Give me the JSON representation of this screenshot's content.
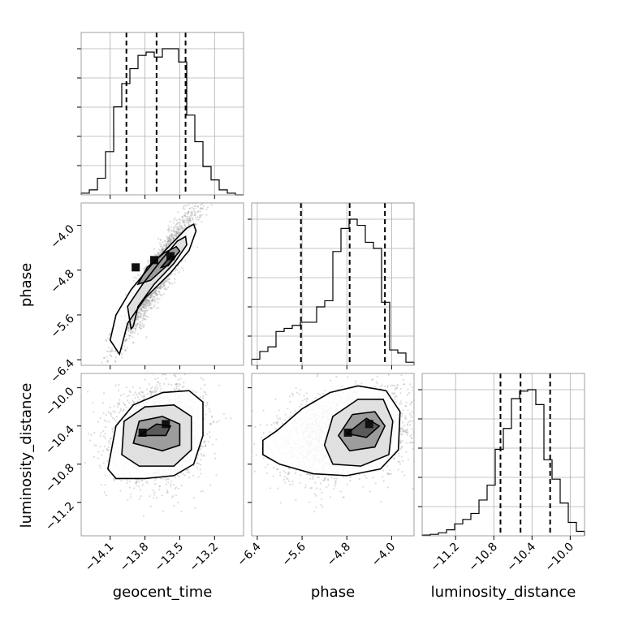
{
  "chart_data": {
    "type": "corner",
    "parameters": [
      "geocent_time",
      "phase",
      "luminosity_distance"
    ],
    "ranges": {
      "geocent_time": [
        -14.35,
        -12.95
      ],
      "phase": [
        -6.5,
        -3.6
      ],
      "luminosity_distance": [
        -11.55,
        -9.85
      ]
    },
    "ticks": {
      "geocent_time": [
        -14.1,
        -13.8,
        -13.5,
        -13.2
      ],
      "phase": [
        -6.4,
        -5.6,
        -4.8,
        -4.0
      ],
      "luminosity_distance": [
        -11.2,
        -10.8,
        -10.4,
        -10.0
      ]
    },
    "tick_labels": {
      "geocent_time": [
        "−14.1",
        "−13.8",
        "−13.5",
        "−13.2"
      ],
      "phase": [
        "−6.4",
        "−5.6",
        "−4.8",
        "−4.0"
      ],
      "luminosity_distance": [
        "−11.2",
        "−10.8",
        "−10.4",
        "−10.0"
      ]
    },
    "quantiles": {
      "geocent_time": [
        -13.96,
        -13.7,
        -13.45
      ],
      "phase": [
        -5.62,
        -4.75,
        -4.12
      ],
      "luminosity_distance": [
        -10.73,
        -10.52,
        -10.21
      ]
    },
    "histograms": {
      "geocent_time": {
        "edges": [
          -14.35,
          -14.28,
          -14.21,
          -14.14,
          -14.07,
          -14.0,
          -13.93,
          -13.86,
          -13.79,
          -13.72,
          -13.65,
          -13.58,
          -13.51,
          -13.44,
          -13.37,
          -13.3,
          -13.23,
          -13.16,
          -13.09,
          -13.02,
          -12.95
        ],
        "counts": [
          0.01,
          0.03,
          0.1,
          0.26,
          0.53,
          0.67,
          0.76,
          0.84,
          0.86,
          0.83,
          0.88,
          0.88,
          0.8,
          0.48,
          0.32,
          0.17,
          0.09,
          0.03,
          0.01,
          0.0
        ]
      },
      "phase": {
        "edges": [
          -6.5,
          -6.355,
          -6.21,
          -6.065,
          -5.92,
          -5.775,
          -5.63,
          -5.485,
          -5.34,
          -5.195,
          -5.05,
          -4.905,
          -4.76,
          -4.615,
          -4.47,
          -4.325,
          -4.18,
          -4.035,
          -3.89,
          -3.745,
          -3.6
        ],
        "counts": [
          0.04,
          0.09,
          0.12,
          0.22,
          0.24,
          0.26,
          0.28,
          0.28,
          0.38,
          0.42,
          0.74,
          0.89,
          0.95,
          0.91,
          0.8,
          0.76,
          0.41,
          0.1,
          0.08,
          0.02
        ]
      },
      "luminosity_distance": {
        "edges": [
          -11.55,
          -11.465,
          -11.38,
          -11.295,
          -11.21,
          -11.125,
          -11.04,
          -10.955,
          -10.87,
          -10.785,
          -10.7,
          -10.615,
          -10.53,
          -10.445,
          -10.36,
          -10.275,
          -10.19,
          -10.105,
          -10.02,
          -9.935,
          -9.85
        ],
        "counts": [
          0.005,
          0.01,
          0.02,
          0.04,
          0.08,
          0.11,
          0.15,
          0.24,
          0.34,
          0.58,
          0.72,
          0.92,
          0.97,
          0.98,
          0.88,
          0.51,
          0.38,
          0.22,
          0.09,
          0.03
        ]
      }
    },
    "pairs": [
      {
        "x": "geocent_time",
        "y": "phase",
        "rho": 0.93,
        "mean": [
          -13.7,
          -4.9
        ],
        "sd": [
          0.17,
          0.58
        ],
        "density_peaks": [
          [
            -13.58,
            -4.55
          ],
          [
            -13.88,
            -4.75
          ],
          [
            -13.72,
            -4.62
          ]
        ],
        "contours": [
          [
            [
              -14.02,
              -6.3
            ],
            [
              -14.1,
              -6.05
            ],
            [
              -14.05,
              -5.6
            ],
            [
              -13.92,
              -5.15
            ],
            [
              -13.75,
              -4.72
            ],
            [
              -13.58,
              -4.35
            ],
            [
              -13.44,
              -4.05
            ],
            [
              -13.38,
              -3.98
            ],
            [
              -13.36,
              -4.1
            ],
            [
              -13.42,
              -4.45
            ],
            [
              -13.58,
              -4.85
            ],
            [
              -13.8,
              -5.3
            ],
            [
              -13.95,
              -5.75
            ],
            [
              -14.0,
              -6.15
            ]
          ],
          [
            [
              -13.92,
              -5.85
            ],
            [
              -13.95,
              -5.45
            ],
            [
              -13.82,
              -5.05
            ],
            [
              -13.66,
              -4.62
            ],
            [
              -13.52,
              -4.28
            ],
            [
              -13.45,
              -4.2
            ],
            [
              -13.44,
              -4.35
            ],
            [
              -13.55,
              -4.68
            ],
            [
              -13.72,
              -5.05
            ],
            [
              -13.86,
              -5.45
            ],
            [
              -13.9,
              -5.8
            ]
          ],
          [
            [
              -13.86,
              -5.05
            ],
            [
              -13.78,
              -4.75
            ],
            [
              -13.64,
              -4.5
            ],
            [
              -13.53,
              -4.38
            ],
            [
              -13.5,
              -4.46
            ],
            [
              -13.6,
              -4.7
            ],
            [
              -13.75,
              -4.98
            ]
          ],
          [
            [
              -13.66,
              -4.75
            ],
            [
              -13.58,
              -4.55
            ],
            [
              -13.54,
              -4.57
            ],
            [
              -13.6,
              -4.72
            ]
          ]
        ]
      },
      {
        "x": "geocent_time",
        "y": "luminosity_distance",
        "rho": 0.1,
        "mean": [
          -13.68,
          -10.48
        ],
        "sd": [
          0.19,
          0.24
        ],
        "density_peaks": [
          [
            -13.82,
            -10.47
          ],
          [
            -13.62,
            -10.38
          ]
        ],
        "contours": [
          [
            [
              -14.12,
              -10.85
            ],
            [
              -14.05,
              -10.4
            ],
            [
              -13.9,
              -10.18
            ],
            [
              -13.65,
              -10.05
            ],
            [
              -13.42,
              -10.03
            ],
            [
              -13.3,
              -10.15
            ],
            [
              -13.3,
              -10.5
            ],
            [
              -13.38,
              -10.8
            ],
            [
              -13.55,
              -10.92
            ],
            [
              -13.8,
              -10.95
            ],
            [
              -14.05,
              -10.95
            ]
          ],
          [
            [
              -14.0,
              -10.7
            ],
            [
              -13.98,
              -10.35
            ],
            [
              -13.8,
              -10.2
            ],
            [
              -13.55,
              -10.18
            ],
            [
              -13.4,
              -10.3
            ],
            [
              -13.4,
              -10.65
            ],
            [
              -13.55,
              -10.82
            ],
            [
              -13.85,
              -10.82
            ]
          ],
          [
            [
              -13.9,
              -10.58
            ],
            [
              -13.85,
              -10.35
            ],
            [
              -13.65,
              -10.3
            ],
            [
              -13.5,
              -10.38
            ],
            [
              -13.5,
              -10.6
            ],
            [
              -13.65,
              -10.66
            ]
          ],
          [
            [
              -13.85,
              -10.5
            ],
            [
              -13.7,
              -10.38
            ],
            [
              -13.58,
              -10.4
            ],
            [
              -13.62,
              -10.5
            ]
          ]
        ]
      },
      {
        "x": "phase",
        "y": "luminosity_distance",
        "rho": 0.3,
        "mean": [
          -4.8,
          -10.48
        ],
        "sd": [
          0.62,
          0.24
        ],
        "density_peaks": [
          [
            -4.78,
            -10.47
          ],
          [
            -4.4,
            -10.38
          ]
        ],
        "contours": [
          [
            [
              -6.3,
              -10.55
            ],
            [
              -6.05,
              -10.45
            ],
            [
              -5.6,
              -10.22
            ],
            [
              -5.1,
              -10.05
            ],
            [
              -4.6,
              -9.98
            ],
            [
              -4.1,
              -10.03
            ],
            [
              -3.85,
              -10.25
            ],
            [
              -3.88,
              -10.65
            ],
            [
              -4.2,
              -10.85
            ],
            [
              -4.8,
              -10.92
            ],
            [
              -5.4,
              -10.9
            ],
            [
              -6.0,
              -10.8
            ],
            [
              -6.3,
              -10.7
            ]
          ],
          [
            [
              -5.2,
              -10.6
            ],
            [
              -5.05,
              -10.3
            ],
            [
              -4.6,
              -10.12
            ],
            [
              -4.15,
              -10.12
            ],
            [
              -3.98,
              -10.35
            ],
            [
              -4.05,
              -10.7
            ],
            [
              -4.55,
              -10.82
            ],
            [
              -5.05,
              -10.8
            ]
          ],
          [
            [
              -4.95,
              -10.5
            ],
            [
              -4.7,
              -10.28
            ],
            [
              -4.3,
              -10.25
            ],
            [
              -4.12,
              -10.4
            ],
            [
              -4.3,
              -10.62
            ],
            [
              -4.75,
              -10.66
            ]
          ],
          [
            [
              -4.8,
              -10.48
            ],
            [
              -4.45,
              -10.32
            ],
            [
              -4.22,
              -10.4
            ],
            [
              -4.45,
              -10.52
            ]
          ]
        ]
      }
    ]
  }
}
